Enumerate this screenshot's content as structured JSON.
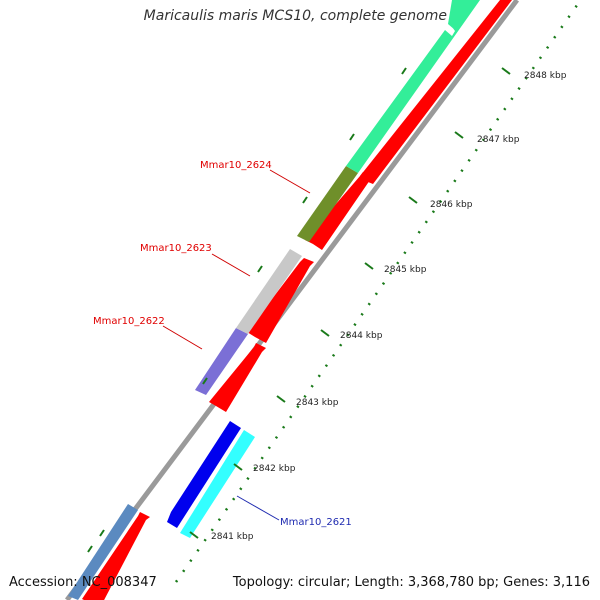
{
  "title": "Maricaulis maris MCS10, complete genome",
  "footer": {
    "accession": "Accession: NC_008347",
    "summary": "Topology: circular; Length: 3,368,780 bp; Genes: 3,116"
  },
  "scale": {
    "labels": [
      "2841 kbp",
      "2842 kbp",
      "2843 kbp",
      "2844 kbp",
      "2845 kbp",
      "2846 kbp",
      "2847 kbp",
      "2848 kbp"
    ]
  },
  "genes": [
    {
      "id": "Mmar10_2621",
      "color": "#1f2bb0"
    },
    {
      "id": "Mmar10_2622",
      "color": "#e00000"
    },
    {
      "id": "Mmar10_2623",
      "color": "#e00000"
    },
    {
      "id": "Mmar10_2624",
      "color": "#e00000"
    }
  ],
  "colors": {
    "backbone": "#8c8c8c",
    "cds_red": "#ff0000",
    "steel_blue": "#5b8ac0",
    "olive": "#6f8f2a",
    "light_gray": "#c8c8c8",
    "slate_blue": "#7b6fd6",
    "blue": "#0000ee",
    "cyan": "#33ffff",
    "spring_green": "#33ee99",
    "tick_green": "#1a7a1a"
  }
}
